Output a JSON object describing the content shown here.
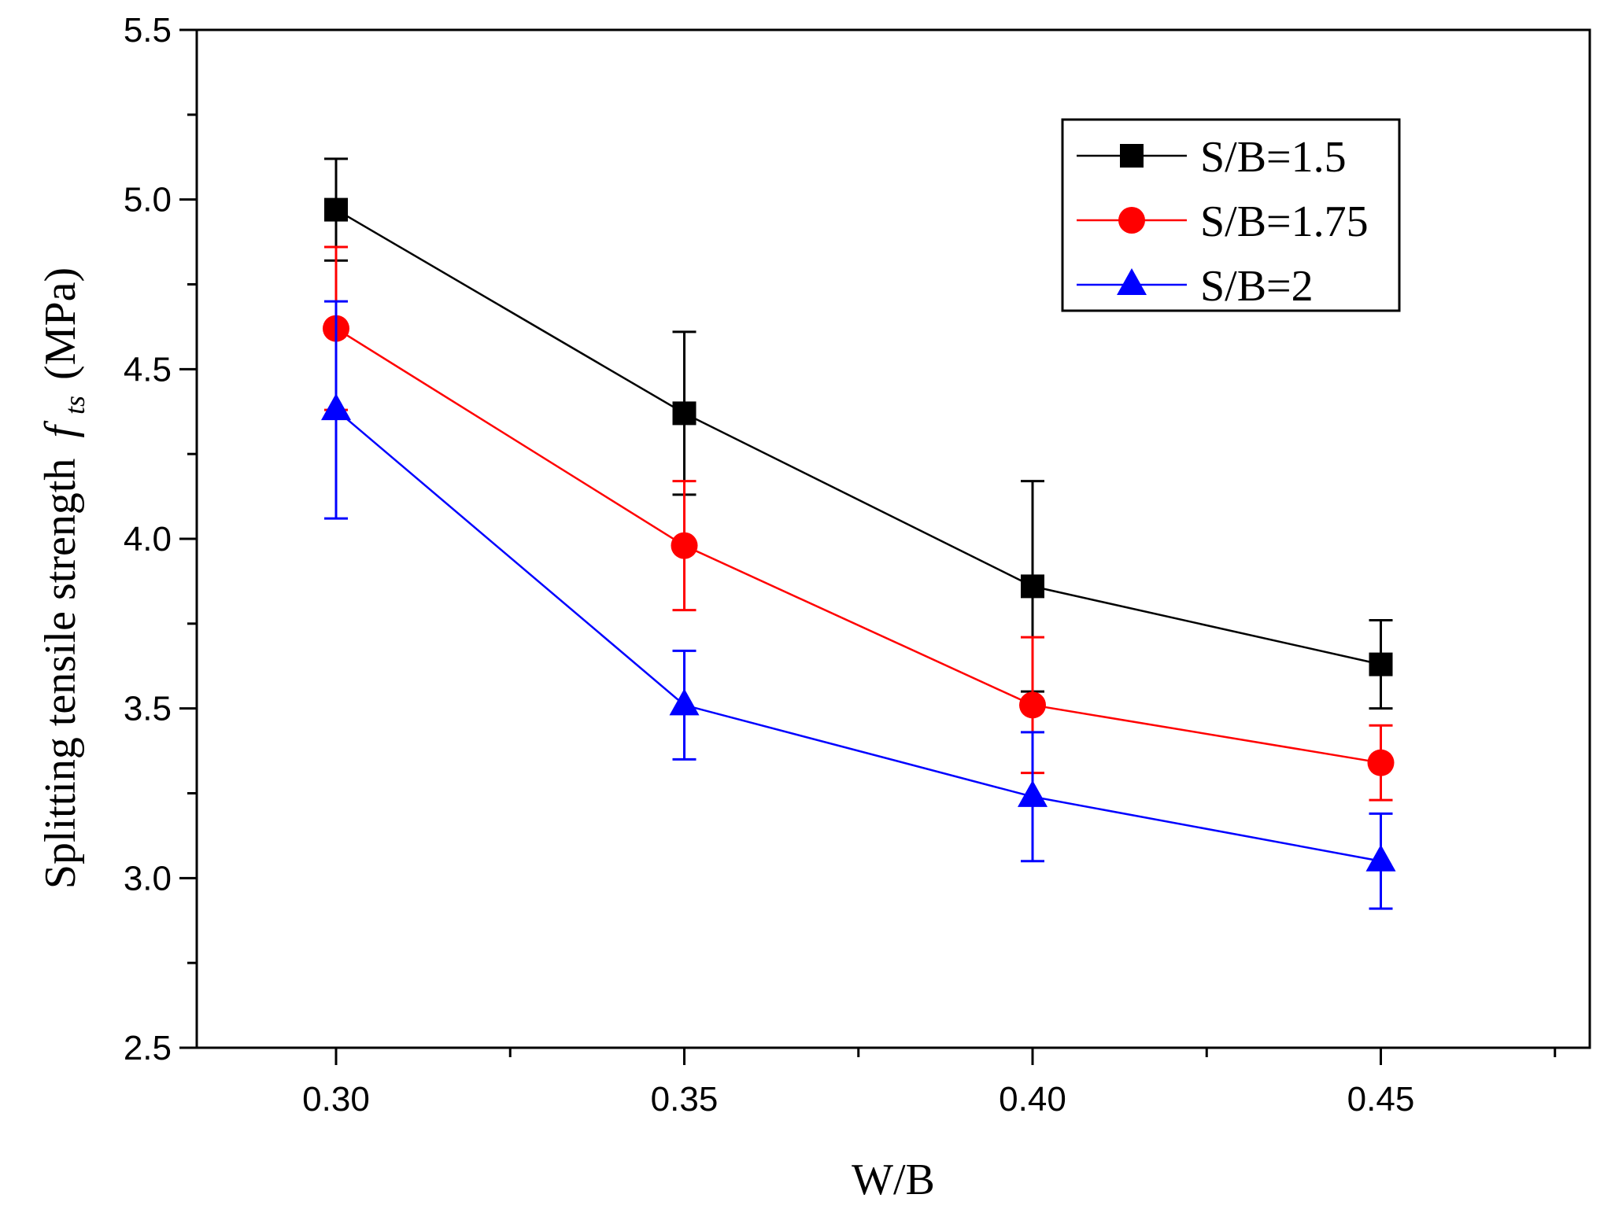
{
  "chart_data": {
    "type": "line",
    "title": "",
    "xlabel": "W/B",
    "ylabel": {
      "main": "Splitting tensile strength",
      "symbol": "f",
      "subscript": "ts",
      "unit": "(MPa)"
    },
    "x": [
      0.3,
      0.35,
      0.4,
      0.45
    ],
    "x_tick_labels": [
      "0.30",
      "0.35",
      "0.40",
      "0.45"
    ],
    "xlim": [
      0.28,
      0.48
    ],
    "ylim": [
      2.5,
      5.5
    ],
    "y_ticks": [
      2.5,
      3.0,
      3.5,
      4.0,
      4.5,
      5.0,
      5.5
    ],
    "y_tick_labels": [
      "2.5",
      "3.0",
      "3.5",
      "4.0",
      "4.5",
      "5.0",
      "5.5"
    ],
    "grid": false,
    "legend_position": "top-right",
    "series": [
      {
        "name": "S/B=1.5",
        "color": "#000000",
        "marker": "square",
        "values": [
          4.97,
          4.37,
          3.86,
          3.63
        ],
        "error_upper": [
          5.12,
          4.61,
          4.17,
          3.76
        ],
        "error_lower": [
          4.82,
          4.13,
          3.55,
          3.5
        ]
      },
      {
        "name": "S/B=1.75",
        "color": "#ff0000",
        "marker": "circle",
        "values": [
          4.62,
          3.98,
          3.51,
          3.34
        ],
        "error_upper": [
          4.86,
          4.17,
          3.71,
          3.45
        ],
        "error_lower": [
          4.38,
          3.79,
          3.31,
          3.23
        ]
      },
      {
        "name": "S/B=2",
        "color": "#0000ff",
        "marker": "triangle",
        "values": [
          4.38,
          3.51,
          3.24,
          3.05
        ],
        "error_upper": [
          4.7,
          3.67,
          3.43,
          3.19
        ],
        "error_lower": [
          4.06,
          3.35,
          3.05,
          2.91
        ]
      }
    ]
  }
}
